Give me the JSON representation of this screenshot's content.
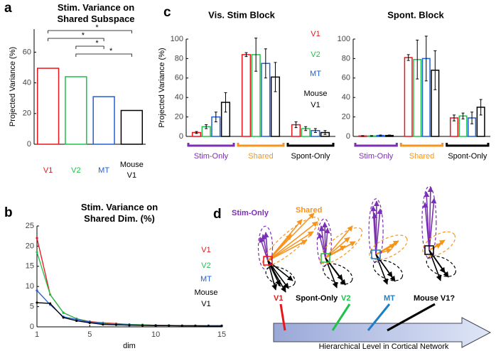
{
  "chart_data": [
    {
      "type": "bar",
      "panel_label": "a",
      "title": "Stim. Variance on Shared Subspace",
      "ylabel": "Projected Variance (%)",
      "categories": [
        "V1",
        "V2",
        "MT",
        "Mouse V1"
      ],
      "values": [
        49.5,
        44,
        31,
        22
      ],
      "colors": [
        "#e8151b",
        "#1ec24a",
        "#1f5fd6",
        "#000000"
      ],
      "ylim": [
        0,
        75
      ],
      "yticks": [
        0,
        20,
        40,
        60
      ],
      "annotations": [
        {
          "text": "*",
          "from": 0,
          "to": 3
        },
        {
          "text": "*",
          "from": 0,
          "to": 2
        },
        {
          "text": "*",
          "from": 1,
          "to": 2
        },
        {
          "text": "*",
          "from": 1,
          "to": 3
        }
      ]
    },
    {
      "type": "line",
      "panel_label": "b",
      "title": "Stim. Variance on Shared Dim. (%)",
      "xlabel": "dim",
      "x": [
        1,
        2,
        3,
        4,
        5,
        6,
        7,
        8,
        9,
        10,
        11,
        12,
        13,
        14,
        15
      ],
      "series": [
        {
          "name": "V1",
          "color": "#e8151b",
          "values": [
            22,
            8,
            3.5,
            2,
            1.3,
            1,
            0.8,
            0.6,
            0.5,
            0.4,
            0.35,
            0.3,
            0.3,
            0.3,
            0.3
          ]
        },
        {
          "name": "V2",
          "color": "#1ec24a",
          "values": [
            18.5,
            8,
            3.5,
            2,
            1.2,
            0.9,
            0.7,
            0.6,
            0.5,
            0.4,
            0.35,
            0.3,
            0.3,
            0.3,
            0.3
          ]
        },
        {
          "name": "MT",
          "color": "#1f5fd6",
          "values": [
            9,
            5.5,
            2.5,
            1.8,
            1.2,
            0.8,
            0.6,
            0.5,
            0.4,
            0.35,
            0.3,
            0.3,
            0.25,
            0.25,
            0.25
          ]
        },
        {
          "name": "Mouse V1",
          "color": "#000000",
          "values": [
            6,
            5.8,
            2.3,
            1.5,
            1,
            0.6,
            0.5,
            0.4,
            0.35,
            0.3,
            0.3,
            0.25,
            0.25,
            0.2,
            0.2
          ]
        }
      ],
      "xlim": [
        1,
        15
      ],
      "xticks": [
        1,
        5,
        10,
        15
      ],
      "ylim": [
        0,
        25
      ],
      "yticks": [
        0,
        5,
        10,
        15,
        20,
        25
      ]
    },
    {
      "type": "grouped_bar",
      "panel_label": "c",
      "title": "Vis. Stim Block",
      "ylabel": "Projected Variance (%)",
      "categories": [
        "Stim-Only",
        "Shared",
        "Spont-Only"
      ],
      "category_colors": [
        "#7b2fb5",
        "#f7941d",
        "#000000"
      ],
      "series": [
        {
          "name": "V1",
          "color": "#e8151b",
          "values": [
            4,
            84,
            12
          ],
          "errors": [
            1,
            2,
            3
          ]
        },
        {
          "name": "V2",
          "color": "#1ec24a",
          "values": [
            10,
            84,
            8
          ],
          "errors": [
            2,
            17,
            2
          ]
        },
        {
          "name": "MT",
          "color": "#1f5fd6",
          "values": [
            20,
            75,
            6
          ],
          "errors": [
            5,
            15,
            2
          ]
        },
        {
          "name": "Mouse V1",
          "color": "#000000",
          "values": [
            35,
            61,
            4
          ],
          "errors": [
            10,
            15,
            2
          ]
        }
      ],
      "ylim": [
        0,
        100
      ],
      "yticks": [
        0,
        20,
        40,
        60,
        80,
        100
      ]
    },
    {
      "type": "grouped_bar",
      "title": "Spont. Block",
      "categories": [
        "Stim-Only",
        "Shared",
        "Spont-Only"
      ],
      "category_colors": [
        "#7b2fb5",
        "#f7941d",
        "#000000"
      ],
      "series": [
        {
          "color": "#e8151b",
          "values": [
            0.5,
            81,
            19
          ],
          "errors": [
            0.3,
            3,
            3
          ]
        },
        {
          "color": "#1ec24a",
          "values": [
            0.5,
            79,
            21
          ],
          "errors": [
            0.3,
            20,
            3
          ]
        },
        {
          "color": "#1f5fd6",
          "values": [
            1,
            80,
            19
          ],
          "errors": [
            0.5,
            23,
            6
          ]
        },
        {
          "color": "#000000",
          "values": [
            1,
            68,
            30
          ],
          "errors": [
            0.5,
            20,
            8
          ]
        }
      ],
      "ylim": [
        0,
        100
      ],
      "yticks": [
        0,
        20,
        40,
        60,
        80,
        100
      ]
    }
  ],
  "diagram": {
    "panel_label": "d",
    "stim_only": "Stim-Only",
    "shared": "Shared",
    "spont_only": "Spont-Only",
    "v1": "V1",
    "v2": "V2",
    "mt": "MT",
    "mouse": "Mouse V1?",
    "axis_label": "Hierarchical Level in Cortical Network"
  }
}
